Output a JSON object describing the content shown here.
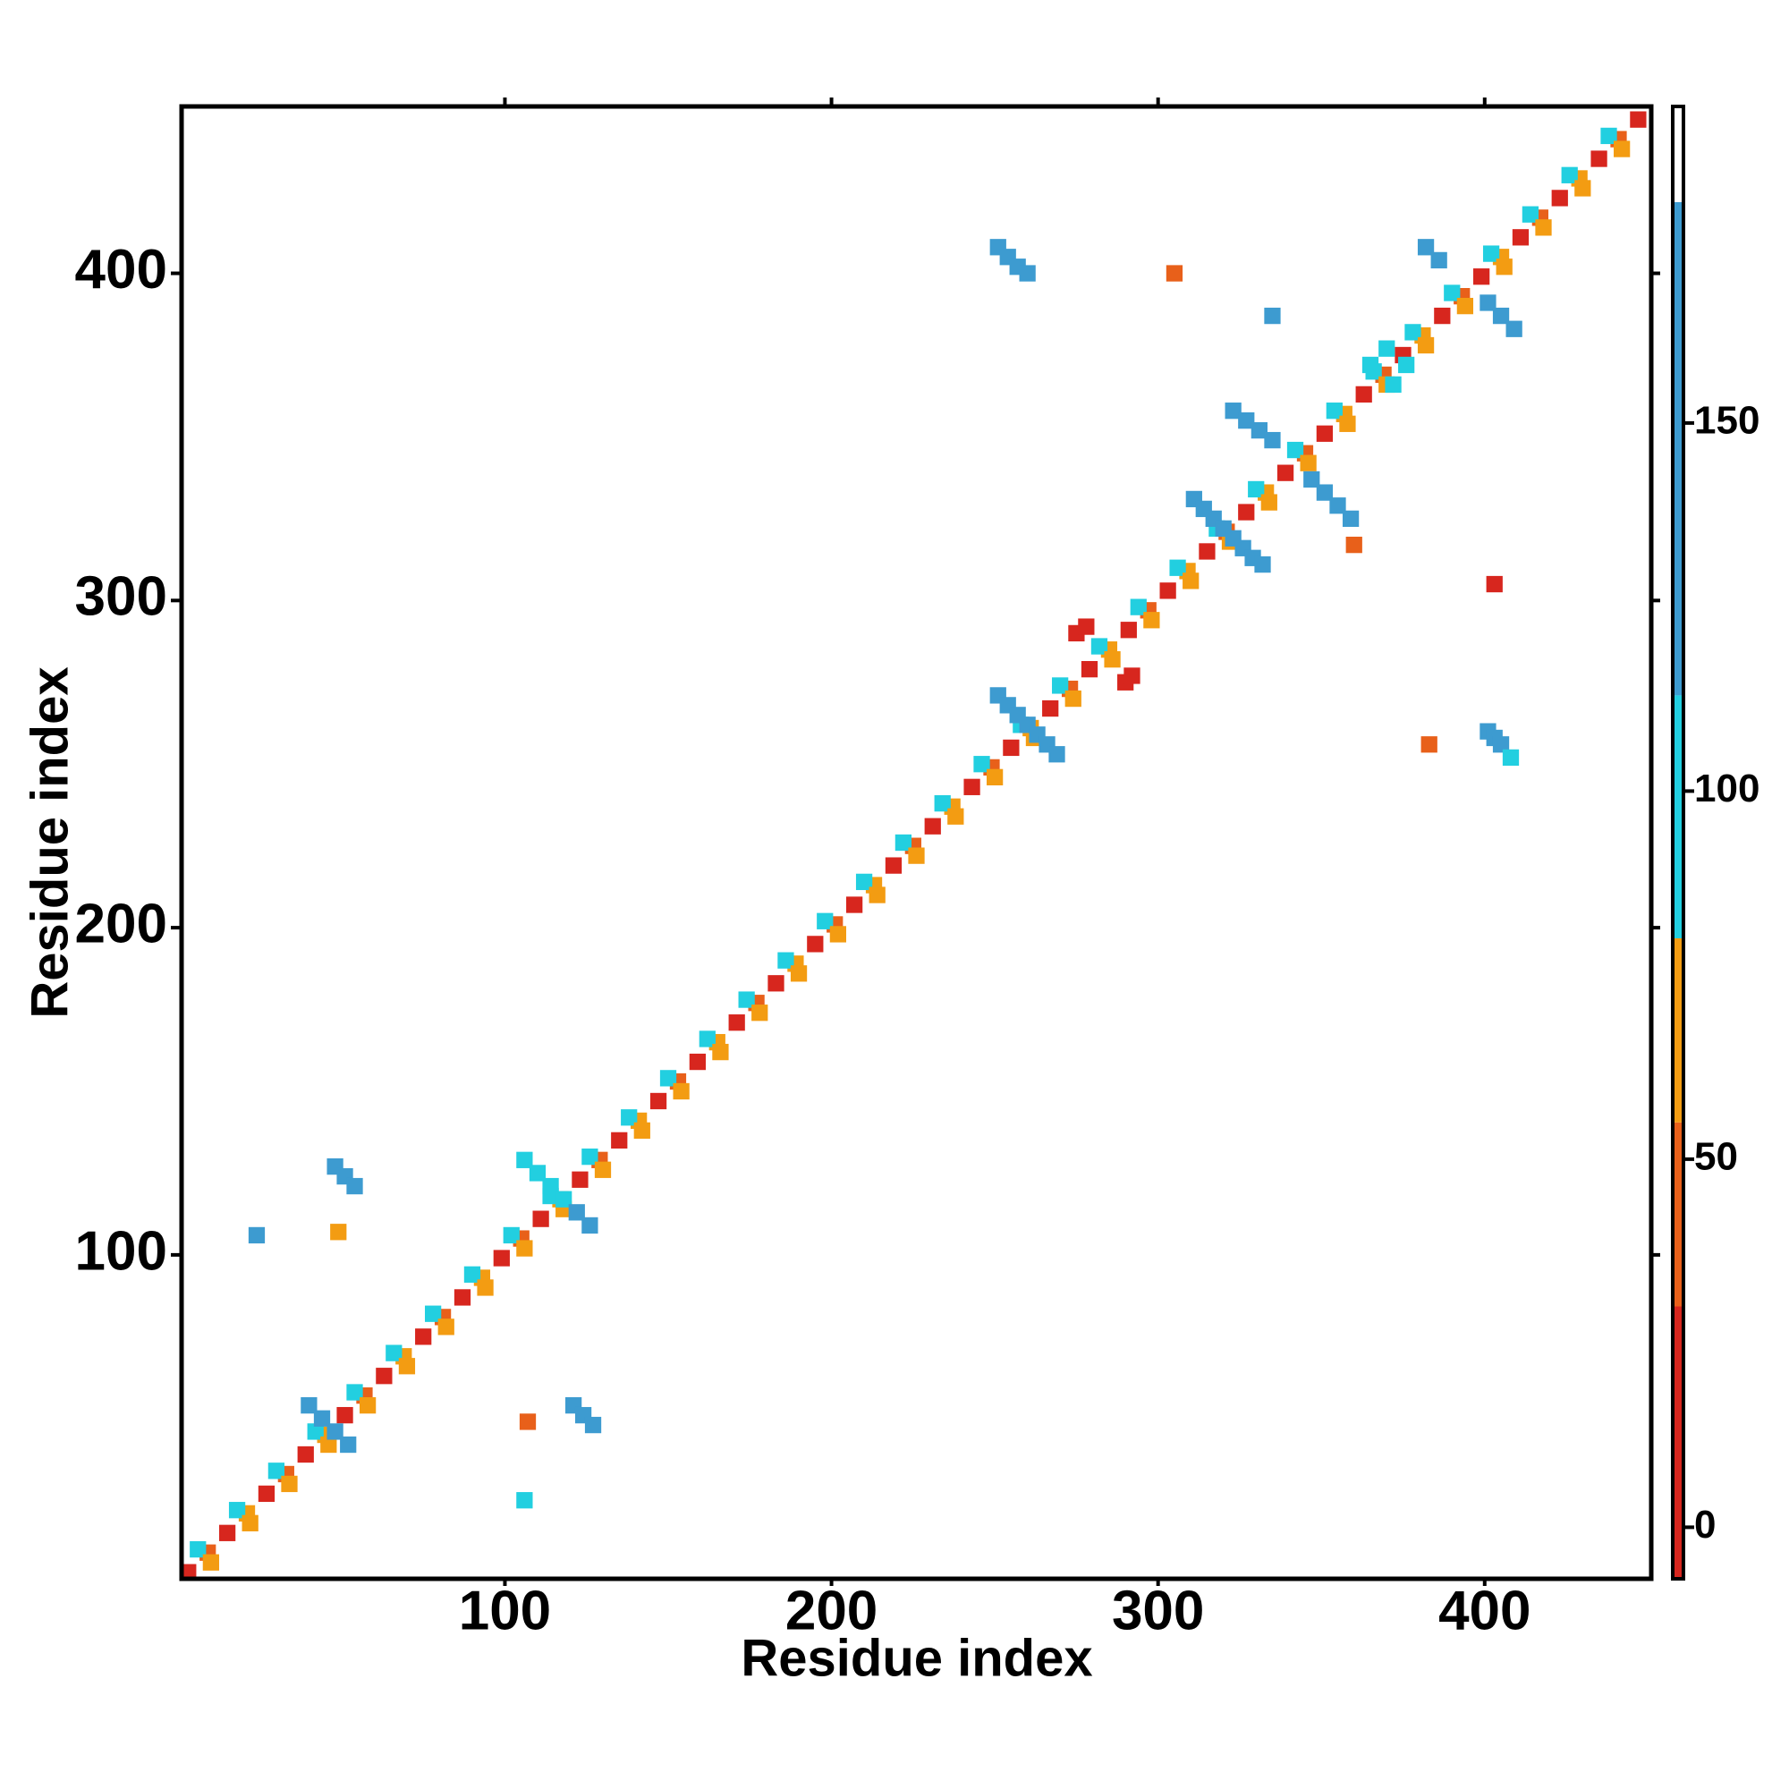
{
  "chart_data": {
    "type": "heatmap",
    "x_label": "Residue index",
    "y_label": "Residue index",
    "xlim": [
      1,
      451
    ],
    "ylim": [
      1,
      451
    ],
    "xticks": [
      100,
      200,
      300,
      400
    ],
    "yticks": [
      100,
      200,
      300,
      400
    ],
    "x": [
      3,
      9,
      15,
      21,
      27,
      33,
      39,
      45,
      51,
      57,
      63,
      69,
      75,
      81,
      87,
      93,
      99,
      105,
      111,
      117,
      123,
      129,
      135,
      141,
      147,
      153,
      159,
      165,
      171,
      177,
      183,
      189,
      195,
      201,
      207,
      213,
      219,
      225,
      231,
      237,
      243,
      249,
      255,
      261,
      267,
      273,
      279,
      285,
      291,
      297,
      303,
      309,
      315,
      321,
      327,
      333,
      339,
      345,
      351,
      357,
      363,
      369,
      375,
      381,
      387,
      393,
      399,
      405,
      411,
      417,
      423,
      429,
      435,
      441,
      447,
      6,
      18,
      30,
      42,
      54,
      66,
      78,
      90,
      102,
      114,
      126,
      138,
      150,
      162,
      174,
      186,
      198,
      210,
      222,
      234,
      246,
      258,
      270,
      282,
      294,
      306,
      318,
      330,
      342,
      354,
      366,
      378,
      390,
      402,
      414,
      426,
      438,
      10,
      22,
      34,
      46,
      58,
      70,
      82,
      94,
      106,
      118,
      130,
      142,
      154,
      166,
      178,
      190,
      202,
      214,
      226,
      238,
      250,
      262,
      274,
      286,
      298,
      310,
      322,
      334,
      346,
      358,
      370,
      382,
      394,
      406,
      418,
      430,
      442,
      251,
      254,
      257,
      260,
      401,
      403,
      405,
      408,
      311,
      314,
      317,
      320,
      323,
      326,
      329,
      332,
      323,
      327,
      331,
      335,
      347,
      351,
      355,
      359,
      251,
      254,
      257,
      260,
      263,
      266,
      269,
      382,
      386,
      401,
      405,
      409,
      48,
      51,
      54,
      121,
      124,
      127,
      106,
      110,
      114,
      118,
      122,
      126,
      40,
      44,
      48,
      52,
      275,
      278,
      290,
      292,
      365,
      370,
      372,
      376,
      24,
      49,
      107,
      106,
      403,
      305,
      383,
      335,
      360
    ],
    "y": [
      3,
      9,
      15,
      21,
      27,
      33,
      39,
      45,
      51,
      57,
      63,
      69,
      75,
      81,
      87,
      93,
      99,
      105,
      111,
      117,
      123,
      129,
      135,
      141,
      147,
      153,
      159,
      165,
      171,
      177,
      183,
      189,
      195,
      201,
      207,
      213,
      219,
      225,
      231,
      237,
      243,
      249,
      255,
      261,
      267,
      273,
      279,
      285,
      291,
      297,
      303,
      309,
      315,
      321,
      327,
      333,
      339,
      345,
      351,
      357,
      363,
      369,
      375,
      381,
      387,
      393,
      399,
      405,
      411,
      417,
      423,
      429,
      435,
      441,
      447,
      10,
      22,
      34,
      46,
      58,
      70,
      82,
      94,
      106,
      118,
      130,
      142,
      154,
      166,
      178,
      190,
      202,
      214,
      226,
      238,
      250,
      262,
      274,
      286,
      298,
      310,
      322,
      334,
      346,
      358,
      370,
      382,
      394,
      406,
      418,
      430,
      442,
      6,
      18,
      30,
      42,
      54,
      66,
      78,
      90,
      102,
      114,
      126,
      138,
      150,
      162,
      174,
      186,
      198,
      210,
      222,
      234,
      246,
      258,
      270,
      282,
      294,
      306,
      318,
      330,
      342,
      354,
      366,
      378,
      390,
      402,
      414,
      426,
      438,
      408,
      405,
      402,
      400,
      260,
      258,
      256,
      252,
      331,
      328,
      325,
      322,
      319,
      316,
      313,
      311,
      358,
      355,
      352,
      349,
      337,
      333,
      329,
      325,
      271,
      268,
      265,
      262,
      259,
      256,
      253,
      408,
      404,
      391,
      387,
      383,
      127,
      124,
      121,
      54,
      51,
      48,
      129,
      125,
      121,
      117,
      113,
      109,
      54,
      50,
      46,
      42,
      290,
      292,
      275,
      277,
      372,
      377,
      366,
      372,
      106,
      107,
      49,
      25,
      305,
      400,
      256,
      387,
      317
    ],
    "values": [
      5,
      40,
      5,
      60,
      5,
      40,
      5,
      60,
      5,
      40,
      5,
      60,
      5,
      40,
      5,
      60,
      5,
      40,
      5,
      60,
      5,
      40,
      5,
      60,
      5,
      40,
      5,
      60,
      5,
      40,
      5,
      60,
      5,
      40,
      5,
      60,
      5,
      40,
      5,
      60,
      5,
      40,
      5,
      60,
      5,
      40,
      5,
      60,
      5,
      40,
      5,
      60,
      5,
      40,
      5,
      60,
      5,
      40,
      5,
      60,
      5,
      40,
      5,
      60,
      5,
      40,
      5,
      60,
      5,
      40,
      5,
      60,
      5,
      40,
      5,
      95,
      95,
      95,
      95,
      95,
      95,
      95,
      95,
      95,
      95,
      95,
      95,
      95,
      95,
      95,
      95,
      95,
      95,
      95,
      95,
      95,
      95,
      95,
      95,
      95,
      95,
      95,
      95,
      95,
      95,
      95,
      95,
      95,
      95,
      95,
      95,
      95,
      60,
      60,
      60,
      60,
      60,
      60,
      60,
      60,
      60,
      60,
      60,
      60,
      60,
      60,
      60,
      60,
      60,
      60,
      60,
      60,
      60,
      60,
      60,
      60,
      60,
      60,
      60,
      60,
      60,
      60,
      60,
      60,
      60,
      60,
      60,
      60,
      60,
      150,
      150,
      150,
      150,
      150,
      150,
      150,
      110,
      150,
      150,
      150,
      150,
      150,
      150,
      150,
      150,
      150,
      150,
      150,
      150,
      150,
      150,
      150,
      150,
      150,
      150,
      150,
      150,
      150,
      150,
      150,
      150,
      150,
      150,
      150,
      150,
      130,
      130,
      130,
      130,
      130,
      130,
      110,
      110,
      110,
      110,
      130,
      130,
      130,
      130,
      130,
      130,
      20,
      20,
      20,
      20,
      100,
      100,
      100,
      100,
      130,
      65,
      50,
      110,
      20,
      50,
      30,
      150,
      50
    ],
    "colorbar": {
      "lim": [
        -7,
        193
      ],
      "ticks": [
        0,
        50,
        100,
        150
      ],
      "scale": [
        {
          "from": -7,
          "to": 30,
          "color": "#d7261e"
        },
        {
          "from": 30,
          "to": 55,
          "color": "#e8601a"
        },
        {
          "from": 55,
          "to": 80,
          "color": "#f39c12"
        },
        {
          "from": 80,
          "to": 113,
          "color": "#22cfe0"
        },
        {
          "from": 113,
          "to": 180,
          "color": "#3d9bd0"
        },
        {
          "from": 180,
          "to": 193,
          "color": "#ffffff"
        }
      ]
    }
  }
}
